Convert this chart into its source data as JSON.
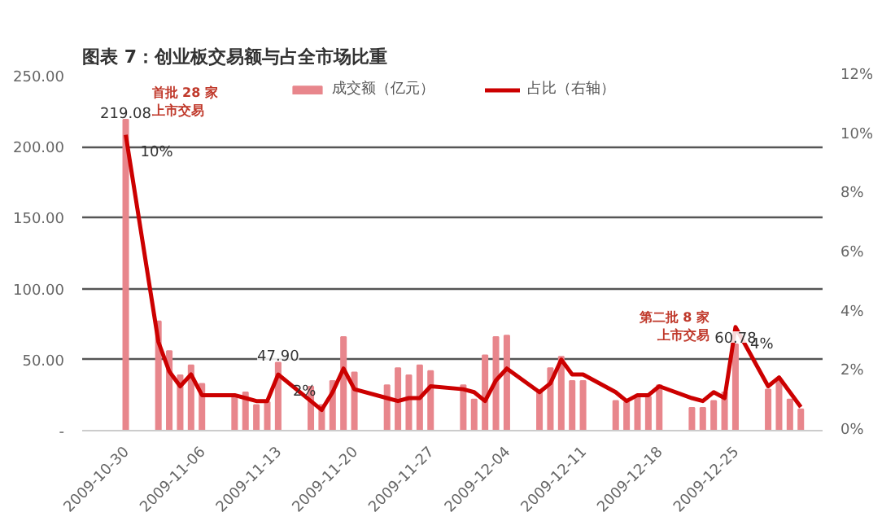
{
  "chart_data": {
    "type": "bar",
    "title": "图表 7：创业板交易额与占全市场比重",
    "x": [
      "2009-10-30",
      "2009-11-02",
      "2009-11-03",
      "2009-11-04",
      "2009-11-05",
      "2009-11-06",
      "2009-11-09",
      "2009-11-10",
      "2009-11-11",
      "2009-11-12",
      "2009-11-13",
      "2009-11-16",
      "2009-11-17",
      "2009-11-18",
      "2009-11-19",
      "2009-11-20",
      "2009-11-23",
      "2009-11-24",
      "2009-11-25",
      "2009-11-26",
      "2009-11-27",
      "2009-11-30",
      "2009-12-01",
      "2009-12-02",
      "2009-12-03",
      "2009-12-04",
      "2009-12-07",
      "2009-12-08",
      "2009-12-09",
      "2009-12-10",
      "2009-12-11",
      "2009-12-14",
      "2009-12-15",
      "2009-12-16",
      "2009-12-17",
      "2009-12-18",
      "2009-12-21",
      "2009-12-22",
      "2009-12-23",
      "2009-12-24",
      "2009-12-25",
      "2009-12-28",
      "2009-12-29",
      "2009-12-30",
      "2009-12-31"
    ],
    "series": [
      {
        "name": "成交额（亿元）",
        "color": "#e8868c",
        "values": [
          219.08,
          77,
          56,
          39,
          46,
          33,
          25,
          27,
          18,
          20,
          47.9,
          31,
          18,
          35,
          66,
          41,
          32,
          44,
          39,
          46,
          42,
          32,
          22,
          53,
          66,
          67,
          27,
          44,
          52,
          35,
          35,
          21,
          20,
          24,
          24,
          32,
          16,
          16,
          21,
          27,
          60.78,
          29,
          35,
          22,
          15
        ],
        "value_labels": [
          "219.08",
          null,
          null,
          null,
          null,
          null,
          null,
          null,
          null,
          null,
          "47.90",
          null,
          null,
          null,
          null,
          null,
          null,
          null,
          null,
          null,
          null,
          null,
          null,
          null,
          null,
          null,
          null,
          null,
          null,
          null,
          null,
          null,
          null,
          null,
          null,
          null,
          null,
          null,
          null,
          null,
          "60.78",
          null,
          null,
          null,
          null
        ]
      },
      {
        "name": "占比（右轴）",
        "type": "line",
        "axis": "y2",
        "color": "#cc0000",
        "values": [
          10,
          3.0,
          2.0,
          1.5,
          1.9,
          1.2,
          1.2,
          1.1,
          1.0,
          1.0,
          1.9,
          1.0,
          0.7,
          1.3,
          2.1,
          1.4,
          1.1,
          1.0,
          1.1,
          1.1,
          1.5,
          1.4,
          1.3,
          1.0,
          1.7,
          2.1,
          1.3,
          1.6,
          2.4,
          1.9,
          1.9,
          1.3,
          1.0,
          1.2,
          1.2,
          1.5,
          1.1,
          1.0,
          1.3,
          1.1,
          3.5,
          1.5,
          1.8,
          1.3,
          0.8
        ],
        "value_labels": [
          "10%",
          null,
          null,
          null,
          null,
          null,
          null,
          null,
          null,
          null,
          "2%",
          null,
          null,
          null,
          null,
          null,
          null,
          null,
          null,
          null,
          null,
          null,
          null,
          null,
          null,
          null,
          null,
          null,
          null,
          null,
          null,
          null,
          null,
          null,
          null,
          null,
          null,
          null,
          null,
          null,
          "4%",
          null,
          null,
          null,
          null
        ]
      }
    ],
    "xlim": [
      "2009-10-26",
      "2010-01-02"
    ],
    "xticks": [
      "2009-10-30",
      "2009-11-06",
      "2009-11-13",
      "2009-11-20",
      "2009-11-27",
      "2009-12-04",
      "2009-12-11",
      "2009-12-18",
      "2009-12-25"
    ],
    "ylim": [
      0,
      250
    ],
    "yticks": [
      {
        "value": 0,
        "label": "-"
      },
      {
        "value": 50,
        "label": "50.00"
      },
      {
        "value": 100,
        "label": "100.00"
      },
      {
        "value": 150,
        "label": "150.00"
      },
      {
        "value": 200,
        "label": "200.00"
      },
      {
        "value": 250,
        "label": "250.00"
      }
    ],
    "y2lim": [
      0,
      12
    ],
    "y2ticks": [
      {
        "value": 0,
        "label": "0%"
      },
      {
        "value": 2,
        "label": "2%"
      },
      {
        "value": 4,
        "label": "4%"
      },
      {
        "value": 6,
        "label": "6%"
      },
      {
        "value": 8,
        "label": "8%"
      },
      {
        "value": 10,
        "label": "10%"
      },
      {
        "value": 12,
        "label": "12%"
      }
    ],
    "annotations": [
      {
        "text": "首批 28 家",
        "x": "2009-10-30",
        "y": 219.08
      },
      {
        "text": "上市交易",
        "x": "2009-10-30",
        "y": 219.08
      },
      {
        "text": "第二批 8 家",
        "x": "2009-12-25",
        "y": 60.78
      },
      {
        "text": "上市交易",
        "x": "2009-12-25",
        "y": 60.78
      }
    ],
    "grid": "y",
    "legend": "top",
    "marker": "none",
    "line_style": "solid"
  }
}
